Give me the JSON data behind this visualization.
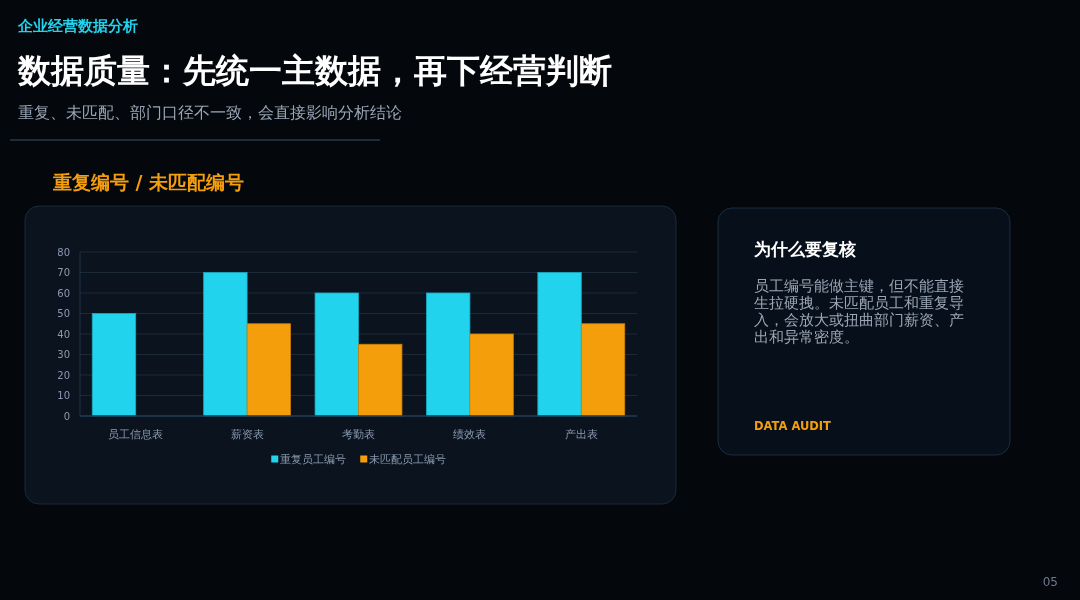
{
  "chart_data": [
    {
      "type": "bar",
      "title": "重复编号 / 未匹配编号",
      "annotations": [
        "企业经营数据分析",
        "数据质量：先统一主数据，再下经营判断",
        "重复、未匹配、部门口径不一致，会直接影响分析结论",
        "05"
      ],
      "categories": [
        "员工信息表",
        "薪资表",
        "考勤表",
        "绩效表",
        "产出表"
      ],
      "series": [
        {
          "name": "重复员工编号",
          "color": "#22d3ee",
          "values": [
            50,
            70,
            60,
            60,
            70
          ]
        },
        {
          "name": "未匹配员工编号",
          "color": "#f59e0b",
          "values": [
            null,
            45,
            35,
            40,
            45
          ]
        }
      ],
      "ylim": [
        0,
        80
      ],
      "yticks": [
        0,
        10,
        20,
        30,
        40,
        50,
        60,
        70,
        80
      ],
      "grid": "y",
      "legend": "bottom"
    },
    {
      "type": "other",
      "title": "为什么要复核",
      "annotations": [
        "员工编号能做主键，但不能直接生拉硬拽。未匹配员工和重复导入，会放大或扭曲部门薪资、产出和异常密度。",
        "DATA AUDIT"
      ]
    }
  ]
}
